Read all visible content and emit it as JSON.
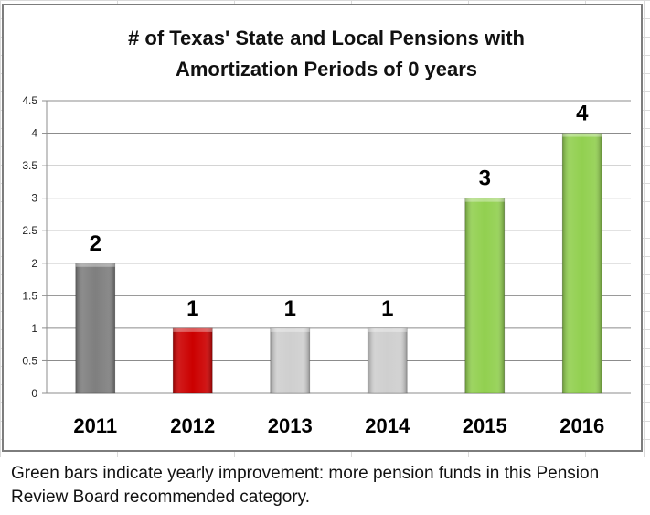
{
  "chart_data": {
    "type": "bar",
    "title_lines": [
      "# of Texas' State and Local Pensions with",
      "Amortization Periods of 0 years"
    ],
    "categories": [
      "2011",
      "2012",
      "2013",
      "2014",
      "2015",
      "2016"
    ],
    "values": [
      2,
      1,
      1,
      1,
      3,
      4
    ],
    "data_labels": [
      "2",
      "1",
      "1",
      "1",
      "3",
      "4"
    ],
    "bar_colors": [
      "#7f7f7f",
      "#cc0000",
      "#cfcfcf",
      "#cfcfcf",
      "#92d050",
      "#92d050"
    ],
    "ylim": [
      0,
      4.5
    ],
    "y_ticks": [
      "0",
      "0.5",
      "1",
      "1.5",
      "2",
      "2.5",
      "3",
      "3.5",
      "4",
      "4.5"
    ],
    "y_tick_values": [
      0,
      0.5,
      1,
      1.5,
      2,
      2.5,
      3,
      3.5,
      4,
      4.5
    ],
    "grid": true,
    "legend": "none"
  },
  "caption": "Green bars indicate yearly improvement: more pension funds in this Pension Review Board recommended category."
}
